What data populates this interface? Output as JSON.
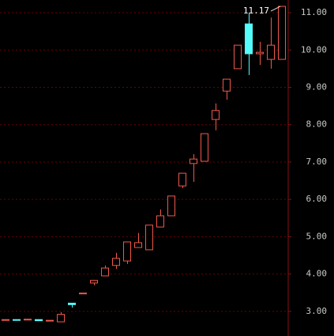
{
  "chart_data": {
    "type": "candlestick",
    "open": [
      2.76,
      2.78,
      2.77,
      2.78,
      2.75,
      2.72,
      3.22,
      3.49,
      3.76,
      3.95,
      4.23,
      4.35,
      4.71,
      4.65,
      5.26,
      5.56,
      6.36,
      6.96,
      7.02,
      8.14,
      8.9,
      9.5,
      10.7,
      9.9,
      9.75,
      9.75
    ],
    "high": [
      2.78,
      2.78,
      2.79,
      2.78,
      2.76,
      2.98,
      3.22,
      3.49,
      3.83,
      4.23,
      4.57,
      4.86,
      5.1,
      5.31,
      5.73,
      6.09,
      6.7,
      7.21,
      7.76,
      8.57,
      9.22,
      10.13,
      11.0,
      10.22,
      10.87,
      11.17
    ],
    "low": [
      2.76,
      2.76,
      2.77,
      2.75,
      2.75,
      2.72,
      3.1,
      3.49,
      3.7,
      3.95,
      4.14,
      4.27,
      4.71,
      4.65,
      5.26,
      5.56,
      6.3,
      6.47,
      7.02,
      7.85,
      8.67,
      9.5,
      9.33,
      9.6,
      9.5,
      9.75
    ],
    "close": [
      2.78,
      2.76,
      2.79,
      2.75,
      2.76,
      2.92,
      3.18,
      3.49,
      3.83,
      4.16,
      4.42,
      4.86,
      4.84,
      5.31,
      5.56,
      6.09,
      6.7,
      7.08,
      7.76,
      8.38,
      9.22,
      10.13,
      9.9,
      9.94,
      10.13,
      11.17
    ],
    "up_color": "#f0584a",
    "down_color": "#54fcfc",
    "ylim": [
      2.34,
      11.34
    ],
    "yticks": [
      {
        "value": 3,
        "label": "3.00"
      },
      {
        "value": 4,
        "label": "4.00"
      },
      {
        "value": 5,
        "label": "5.00"
      },
      {
        "value": 6,
        "label": "6.00"
      },
      {
        "value": 7,
        "label": "7.00"
      },
      {
        "value": 8,
        "label": "8.00"
      },
      {
        "value": 9,
        "label": "9.00"
      },
      {
        "value": 10,
        "label": "10.00"
      },
      {
        "value": 11,
        "label": "11.00"
      }
    ],
    "grid": true
  }
}
